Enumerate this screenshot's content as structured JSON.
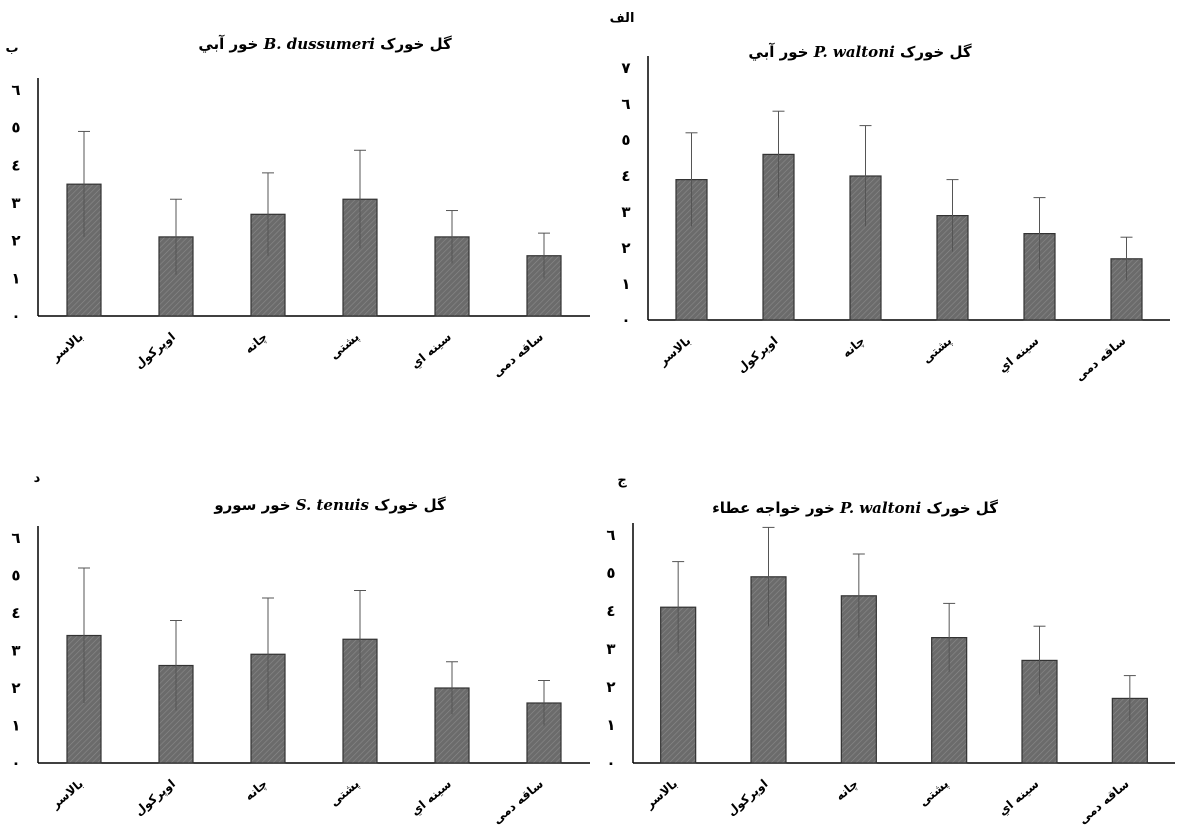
{
  "chart_data": [
    {
      "type": "bar",
      "panel_letter": "الف",
      "title_prefix": "گل خورک",
      "title_species": "P. waltoni",
      "title_suffix": "خور آبي",
      "categories": [
        "بالاسر",
        "اوپركول",
        "چانه",
        "پشتی",
        "سينه اي",
        "ساقه دمی"
      ],
      "values": [
        3.9,
        4.6,
        4.0,
        2.9,
        2.4,
        1.7
      ],
      "errors": [
        1.3,
        1.2,
        1.4,
        1.0,
        1.0,
        0.6
      ],
      "ylim": [
        0,
        7
      ],
      "ytick_labels": [
        "٠",
        "١",
        "٢",
        "٣",
        "٤",
        "٥",
        "٦",
        "٧"
      ],
      "bar_color": "#6b6b6b",
      "axis_color": "#000000"
    },
    {
      "type": "bar",
      "panel_letter": "ب",
      "title_prefix": "گل خورک",
      "title_species": "B. dussumeri",
      "title_suffix": "خور آبي",
      "categories": [
        "بالاسر",
        "اوپركول",
        "چانه",
        "پشتی",
        "سينه اي",
        "ساقه دمی"
      ],
      "values": [
        3.5,
        2.1,
        2.7,
        3.1,
        2.1,
        1.6
      ],
      "errors": [
        1.4,
        1.0,
        1.1,
        1.3,
        0.7,
        0.6
      ],
      "ylim": [
        0,
        6
      ],
      "ytick_labels": [
        "٠",
        "١",
        "٢",
        "٣",
        "٤",
        "٥",
        "٦"
      ],
      "bar_color": "#6b6b6b",
      "axis_color": "#000000"
    },
    {
      "type": "bar",
      "panel_letter": "ج",
      "title_prefix": "گل خورک",
      "title_species": "P. waltoni",
      "title_suffix": "خور خواجه عطاء",
      "categories": [
        "بالاسر",
        "اوپركول",
        "چانه",
        "پشتی",
        "سينه اي",
        "ساقه دمی"
      ],
      "values": [
        4.1,
        4.9,
        4.4,
        3.3,
        2.7,
        1.7
      ],
      "errors": [
        1.2,
        1.3,
        1.1,
        0.9,
        0.9,
        0.6
      ],
      "ylim": [
        0,
        6
      ],
      "ytick_labels": [
        "٠",
        "١",
        "٢",
        "٣",
        "٤",
        "٥",
        "٦"
      ],
      "bar_color": "#6b6b6b",
      "axis_color": "#000000"
    },
    {
      "type": "bar",
      "panel_letter": "د",
      "title_prefix": "گل خورک",
      "title_species": "S. tenuis",
      "title_suffix": "خور سورو",
      "categories": [
        "بالاسر",
        "اوپركول",
        "چانه",
        "پشتی",
        "سينه اي",
        "ساقه دمی"
      ],
      "values": [
        3.4,
        2.6,
        2.9,
        3.3,
        2.0,
        1.6
      ],
      "errors": [
        1.8,
        1.2,
        1.5,
        1.3,
        0.7,
        0.6
      ],
      "ylim": [
        0,
        6
      ],
      "ytick_labels": [
        "٠",
        "١",
        "٢",
        "٣",
        "٤",
        "٥",
        "٦"
      ],
      "bar_color": "#6b6b6b",
      "axis_color": "#000000"
    }
  ]
}
